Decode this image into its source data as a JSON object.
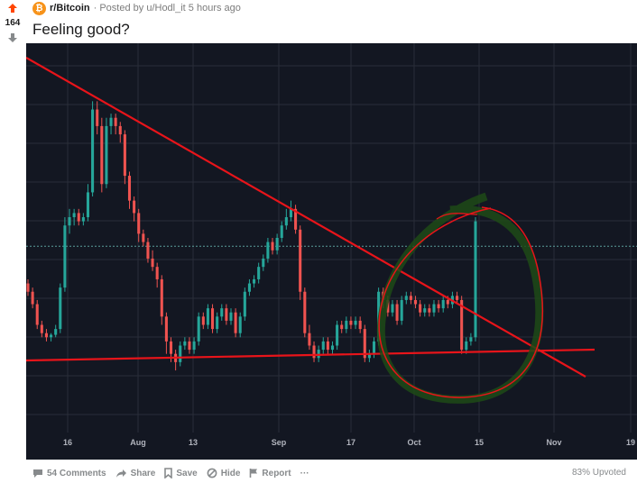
{
  "post": {
    "score": "164",
    "subreddit": "r/Bitcoin",
    "subreddit_icon": "bitcoin-icon",
    "posted_by": "· Posted by u/Hodl_it 5 hours ago",
    "title": "Feeling good?",
    "upvoted": "83% Upvoted"
  },
  "actions": {
    "comments": "54 Comments",
    "share": "Share",
    "save": "Save",
    "hide": "Hide",
    "report": "Report",
    "more": "···"
  },
  "colors": {
    "upvote": "#ff4500",
    "chart_bg": "#131722",
    "bull": "#26a69a",
    "bear": "#ef5350",
    "trendline": "#e8141a"
  },
  "chart_data": {
    "type": "candlestick",
    "x_ticks": [
      "16",
      "Aug",
      "13",
      "Sep",
      "17",
      "Oct",
      "15",
      "Nov",
      "19"
    ],
    "candles": [
      [
        7400,
        7300,
        7450,
        7250
      ],
      [
        7300,
        7150,
        7350,
        7100
      ],
      [
        7150,
        6900,
        7200,
        6850
      ],
      [
        6900,
        6800,
        6950,
        6750
      ],
      [
        6800,
        6750,
        6850,
        6700
      ],
      [
        6750,
        6780,
        6800,
        6700
      ],
      [
        6780,
        6850,
        6900,
        6750
      ],
      [
        6850,
        7350,
        7400,
        6800
      ],
      [
        7350,
        8100,
        8200,
        7300
      ],
      [
        8100,
        8200,
        8300,
        8000
      ],
      [
        8200,
        8250,
        8300,
        8100
      ],
      [
        8250,
        8150,
        8300,
        8100
      ],
      [
        8150,
        8200,
        8250,
        8100
      ],
      [
        8200,
        8500,
        8600,
        8150
      ],
      [
        8500,
        9500,
        9600,
        8450
      ],
      [
        9500,
        9300,
        9600,
        9200
      ],
      [
        9300,
        8600,
        9400,
        8500
      ],
      [
        8600,
        9300,
        9400,
        8550
      ],
      [
        9300,
        9400,
        9450,
        9200
      ],
      [
        9400,
        9300,
        9450,
        9200
      ],
      [
        9300,
        9200,
        9350,
        9100
      ],
      [
        9200,
        8700,
        9250,
        8600
      ],
      [
        8700,
        8400,
        8750,
        8300
      ],
      [
        8400,
        8250,
        8450,
        8150
      ],
      [
        8250,
        8000,
        8300,
        7900
      ],
      [
        8000,
        7900,
        8050,
        7850
      ],
      [
        7900,
        7700,
        7950,
        7650
      ],
      [
        7700,
        7600,
        7800,
        7550
      ],
      [
        7600,
        7450,
        7650,
        7350
      ],
      [
        7450,
        7000,
        7500,
        6900
      ],
      [
        7000,
        6700,
        7050,
        6550
      ],
      [
        6700,
        6550,
        6750,
        6450
      ],
      [
        6550,
        6450,
        6600,
        6350
      ],
      [
        6450,
        6650,
        6700,
        6400
      ],
      [
        6650,
        6700,
        6750,
        6600
      ],
      [
        6700,
        6600,
        6750,
        6550
      ],
      [
        6600,
        6700,
        6750,
        6550
      ],
      [
        6700,
        7000,
        7050,
        6650
      ],
      [
        7000,
        6900,
        7050,
        6850
      ],
      [
        6900,
        7100,
        7150,
        6850
      ],
      [
        7100,
        6850,
        7150,
        6800
      ],
      [
        6850,
        7000,
        7050,
        6800
      ],
      [
        7000,
        7100,
        7150,
        6950
      ],
      [
        7100,
        6950,
        7150,
        6900
      ],
      [
        6950,
        7050,
        7100,
        6900
      ],
      [
        7050,
        6800,
        7100,
        6750
      ],
      [
        6800,
        7000,
        7050,
        6750
      ],
      [
        7000,
        7300,
        7350,
        6950
      ],
      [
        7300,
        7400,
        7450,
        7250
      ],
      [
        7400,
        7450,
        7500,
        7350
      ],
      [
        7450,
        7600,
        7650,
        7400
      ],
      [
        7600,
        7700,
        7750,
        7550
      ],
      [
        7700,
        7900,
        7950,
        7650
      ],
      [
        7900,
        7800,
        7950,
        7750
      ],
      [
        7800,
        7950,
        8000,
        7750
      ],
      [
        7950,
        8100,
        8150,
        7900
      ],
      [
        8100,
        8200,
        8300,
        8050
      ],
      [
        8200,
        8300,
        8400,
        8150
      ],
      [
        8300,
        8050,
        8350,
        8000
      ],
      [
        8050,
        7300,
        8100,
        7200
      ],
      [
        7300,
        6800,
        7350,
        6750
      ],
      [
        6800,
        6650,
        6900,
        6600
      ],
      [
        6650,
        6500,
        6700,
        6450
      ],
      [
        6500,
        6600,
        6650,
        6450
      ],
      [
        6600,
        6700,
        6750,
        6550
      ],
      [
        6700,
        6600,
        6750,
        6550
      ],
      [
        6600,
        6650,
        6700,
        6550
      ],
      [
        6650,
        6900,
        6950,
        6600
      ],
      [
        6900,
        6850,
        6950,
        6800
      ],
      [
        6850,
        6950,
        7000,
        6800
      ],
      [
        6950,
        6900,
        7000,
        6850
      ],
      [
        6900,
        6950,
        7000,
        6850
      ],
      [
        6950,
        6850,
        7000,
        6800
      ],
      [
        6850,
        6500,
        6900,
        6450
      ],
      [
        6500,
        6550,
        6600,
        6450
      ],
      [
        6550,
        6700,
        6750,
        6500
      ],
      [
        6700,
        7300,
        7350,
        6650
      ],
      [
        7300,
        7200,
        7350,
        7100
      ],
      [
        7200,
        7050,
        7250,
        7000
      ],
      [
        7050,
        7150,
        7200,
        7000
      ],
      [
        7150,
        6950,
        7200,
        6900
      ],
      [
        6950,
        7200,
        7250,
        6900
      ],
      [
        7200,
        7250,
        7300,
        7150
      ],
      [
        7250,
        7200,
        7300,
        7150
      ],
      [
        7200,
        7150,
        7250,
        7100
      ],
      [
        7150,
        7050,
        7200,
        7000
      ],
      [
        7050,
        7100,
        7150,
        7000
      ],
      [
        7100,
        7050,
        7150,
        7000
      ],
      [
        7050,
        7150,
        7200,
        7000
      ],
      [
        7150,
        7100,
        7200,
        7050
      ],
      [
        7100,
        7200,
        7250,
        7050
      ],
      [
        7200,
        7150,
        7250,
        7100
      ],
      [
        7150,
        7250,
        7300,
        7100
      ],
      [
        7250,
        7200,
        7300,
        7150
      ],
      [
        7200,
        6600,
        7250,
        6550
      ],
      [
        6600,
        6700,
        6750,
        6550
      ],
      [
        6700,
        6750,
        6800,
        6650
      ],
      [
        6750,
        8150,
        8200,
        6700
      ]
    ],
    "candle_x_range": [
      0,
      103
    ],
    "ylim": [
      5600,
      10300
    ],
    "reference_line_y": 7850,
    "grid": true
  }
}
